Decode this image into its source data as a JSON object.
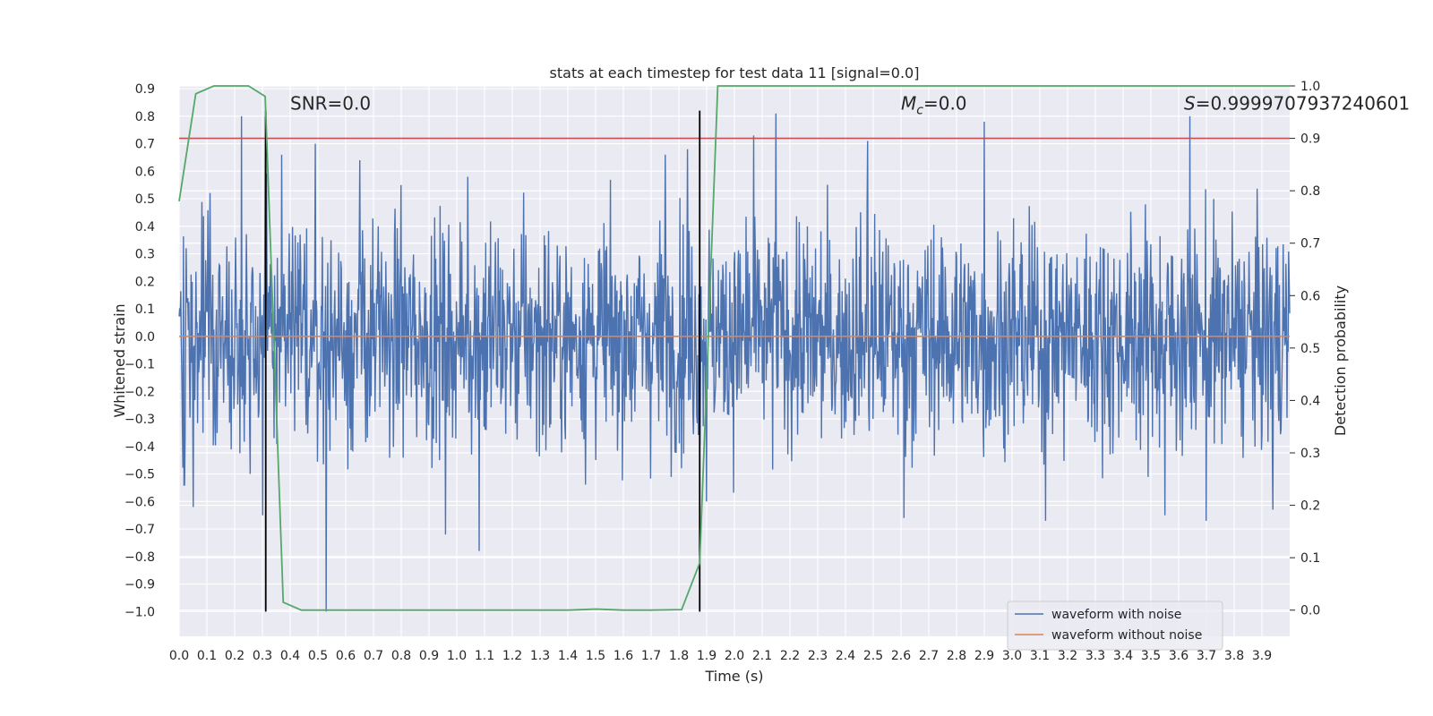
{
  "chart_data": {
    "type": "line",
    "title": "stats at each timestep for test data 11 [signal=0.0]",
    "xlabel": "Time (s)",
    "ylabel_left": "Whitened strain",
    "ylabel_right": "Detection probability",
    "xlim": [
      0.0,
      4.0
    ],
    "ylim_left": [
      -1.09,
      0.91
    ],
    "ylim_right": [
      -0.05,
      1.0
    ],
    "x_ticks": [
      0.0,
      0.1,
      0.2,
      0.3,
      0.4,
      0.5,
      0.6,
      0.7,
      0.8,
      0.9,
      1.0,
      1.1,
      1.2,
      1.3,
      1.4,
      1.5,
      1.6,
      1.7,
      1.8,
      1.9,
      2.0,
      2.1,
      2.2,
      2.3,
      2.4,
      2.5,
      2.6,
      2.7,
      2.8,
      2.9,
      3.0,
      3.1,
      3.2,
      3.3,
      3.4,
      3.5,
      3.6,
      3.7,
      3.8,
      3.9
    ],
    "x_tick_labels": [
      "0.0",
      "0.1",
      "0.2",
      "0.3",
      "0.4",
      "0.5",
      "0.6",
      "0.7",
      "0.8",
      "0.9",
      "1.0",
      "1.1",
      "1.2",
      "1.3",
      "1.4",
      "1.5",
      "1.6",
      "1.7",
      "1.8",
      "1.9",
      "2.0",
      "2.1",
      "2.2",
      "2.3",
      "2.4",
      "2.5",
      "2.6",
      "2.7",
      "2.8",
      "2.9",
      "3.0",
      "3.1",
      "3.2",
      "3.3",
      "3.4",
      "3.5",
      "3.6",
      "3.7",
      "3.8",
      "3.9"
    ],
    "y_left_ticks": [
      0.9,
      0.8,
      0.7,
      0.6,
      0.5,
      0.4,
      0.3,
      0.2,
      0.1,
      0.0,
      -0.1,
      -0.2,
      -0.3,
      -0.4,
      -0.5,
      -0.6,
      -0.7,
      -0.8,
      -0.9,
      -1.0
    ],
    "y_left_tick_labels": [
      "0.9",
      "0.8",
      "0.7",
      "0.6",
      "0.5",
      "0.4",
      "0.3",
      "0.2",
      "0.1",
      "0.0",
      "−0.1",
      "−0.2",
      "−0.3",
      "−0.4",
      "−0.5",
      "−0.6",
      "−0.7",
      "−0.8",
      "−0.9",
      "−1.0"
    ],
    "y_right_ticks": [
      0.0,
      0.1,
      0.2,
      0.3,
      0.4,
      0.5,
      0.6,
      0.7,
      0.8,
      0.9,
      1.0
    ],
    "y_right_tick_labels": [
      "0.0",
      "0.1",
      "0.2",
      "0.3",
      "0.4",
      "0.5",
      "0.6",
      "0.7",
      "0.8",
      "0.9",
      "1.0"
    ],
    "grid": true,
    "legend_position": "bottom-right",
    "series": [
      {
        "name": "waveform with noise",
        "color": "#4c72b0",
        "axis": "left",
        "noise_std": 0.2,
        "x_range": [
          0.0,
          4.0
        ],
        "spikes": [
          {
            "x": 0.225,
            "y": 0.8
          },
          {
            "x": 0.31,
            "y": 0.8
          },
          {
            "x": 0.37,
            "y": 0.66
          },
          {
            "x": 0.49,
            "y": 0.7
          },
          {
            "x": 0.53,
            "y": -1.0
          },
          {
            "x": 0.65,
            "y": 0.64
          },
          {
            "x": 0.02,
            "y": -0.54
          },
          {
            "x": 0.05,
            "y": -0.62
          },
          {
            "x": 0.3,
            "y": -0.65
          },
          {
            "x": 1.08,
            "y": -0.78
          },
          {
            "x": 0.96,
            "y": -0.72
          },
          {
            "x": 2.15,
            "y": 0.81
          },
          {
            "x": 2.07,
            "y": 0.73
          },
          {
            "x": 2.48,
            "y": 0.71
          },
          {
            "x": 2.9,
            "y": 0.78
          },
          {
            "x": 3.64,
            "y": 0.8
          },
          {
            "x": 3.12,
            "y": -0.67
          },
          {
            "x": 3.55,
            "y": -0.65
          },
          {
            "x": 3.7,
            "y": -0.67
          },
          {
            "x": 3.94,
            "y": -0.63
          },
          {
            "x": 1.83,
            "y": 0.68
          },
          {
            "x": 1.75,
            "y": 0.66
          },
          {
            "x": 2.61,
            "y": -0.66
          },
          {
            "x": 1.9,
            "y": -0.6
          },
          {
            "x": 1.04,
            "y": 0.58
          },
          {
            "x": 0.8,
            "y": 0.55
          }
        ]
      },
      {
        "name": "waveform without noise",
        "color": "#dd8452",
        "axis": "left",
        "x": [
          0.0,
          4.0
        ],
        "y": [
          0.0,
          0.0
        ]
      },
      {
        "name": "",
        "color": "#55a868",
        "axis": "right",
        "x": [
          0.0,
          0.06,
          0.125,
          0.19,
          0.25,
          0.31,
          0.375,
          0.44,
          0.5,
          1.0,
          1.4,
          1.5,
          1.6,
          1.7,
          1.81,
          1.875,
          1.94,
          2.0,
          4.0
        ],
        "y": [
          0.78,
          0.985,
          1.0,
          1.0,
          1.0,
          0.98,
          0.015,
          0.0,
          0.0,
          0.0,
          0.0,
          0.002,
          0.0,
          0.0,
          0.001,
          0.09,
          1.0,
          1.0,
          1.0
        ]
      }
    ],
    "threshold_line": {
      "axis": "right",
      "y": 0.9,
      "color": "#c44e52"
    },
    "vertical_lines": [
      {
        "x": 0.312,
        "y_range": [
          -1.0,
          0.82
        ],
        "color": "#000000"
      },
      {
        "x": 1.875,
        "y_range": [
          -1.0,
          0.82
        ],
        "color": "#000000"
      }
    ],
    "annotations": [
      {
        "text": "SNR=0.0",
        "x": 0.2,
        "y": 0.82
      },
      {
        "text": "M",
        "sub": "c",
        "tail": "=0.0",
        "x": 2.6,
        "y": 0.82
      },
      {
        "text": "S=0.9999707937240601",
        "x": 3.6,
        "y": 0.82
      }
    ]
  }
}
